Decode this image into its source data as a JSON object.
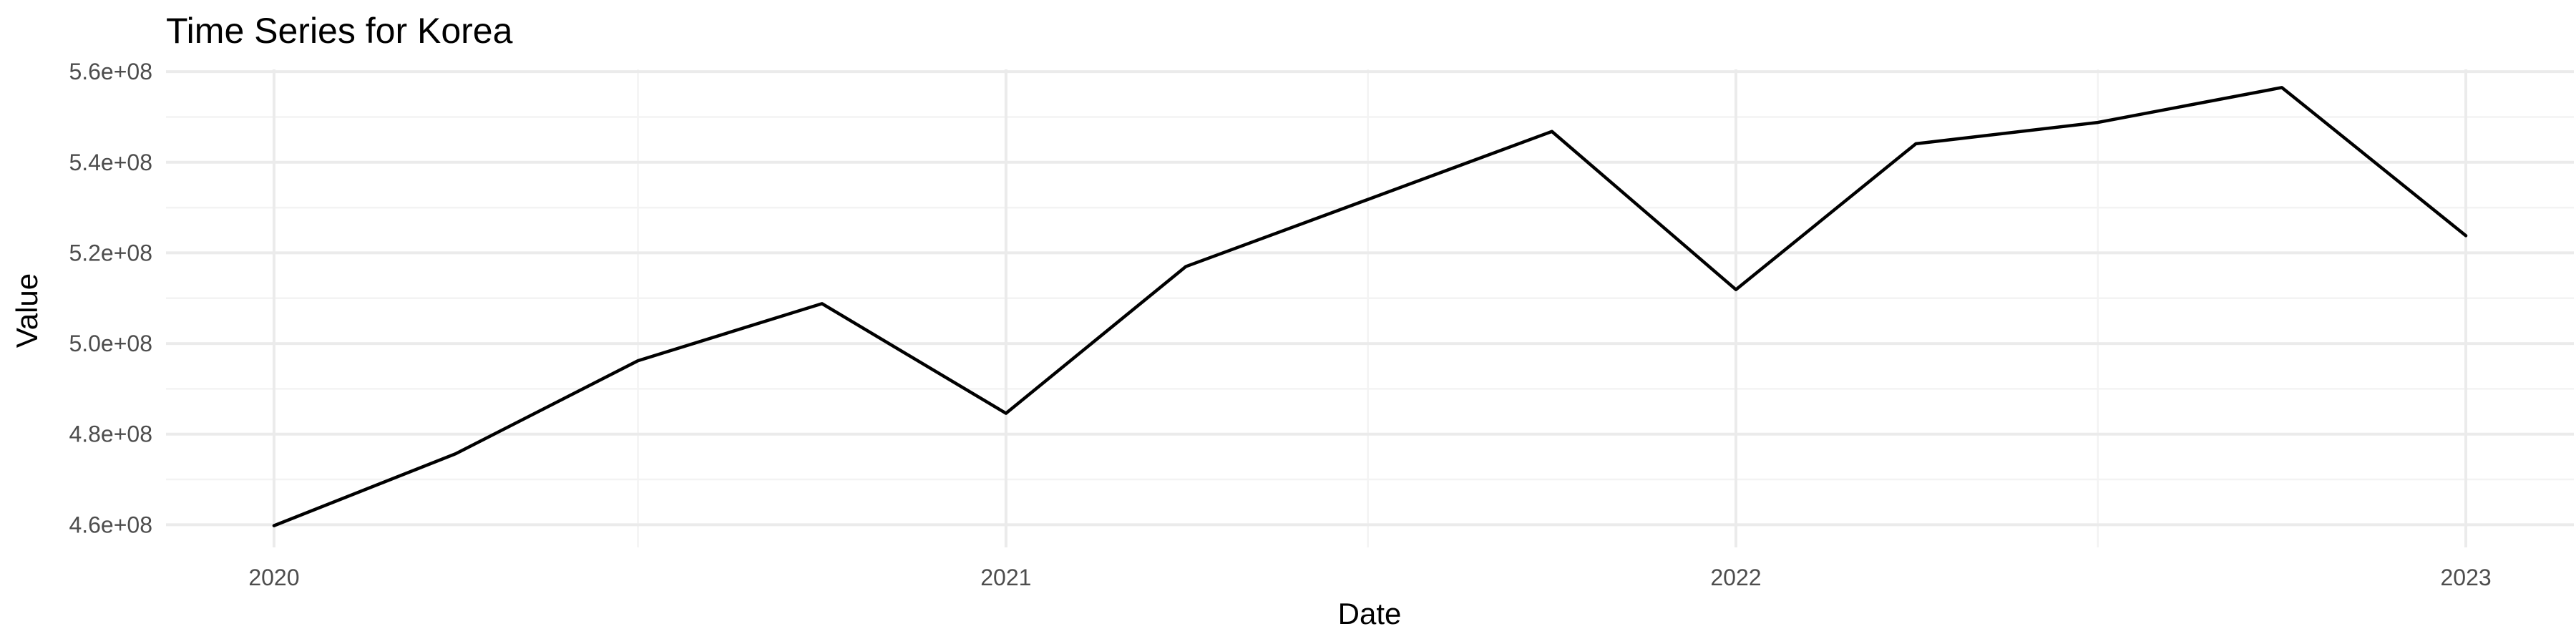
{
  "chart_data": {
    "type": "line",
    "title": "Time Series for Korea",
    "xlabel": "Date",
    "ylabel": "Value",
    "x": [
      "2020-01-01",
      "2020-04-01",
      "2020-07-01",
      "2020-10-01",
      "2021-01-01",
      "2021-04-01",
      "2021-07-01",
      "2021-10-01",
      "2022-01-01",
      "2022-04-01",
      "2022-07-01",
      "2022-10-01",
      "2023-01-01"
    ],
    "series": [
      {
        "values": [
          459800000,
          475700000,
          496200000,
          508800000,
          484600000,
          517000000,
          531800000,
          546800000,
          511900000,
          544100000,
          548800000,
          556500000,
          523800000
        ]
      }
    ],
    "xlim": [
      "2019-11-08",
      "2023-02-24"
    ],
    "ylim": [
      455000000,
      560500000
    ],
    "x_ticks": [
      "2020-01-01",
      "2021-01-01",
      "2022-01-01",
      "2023-01-01"
    ],
    "x_tick_labels": [
      "2020",
      "2021",
      "2022",
      "2023"
    ],
    "x_minor_ticks": [
      "2020-07-01",
      "2021-07-01",
      "2022-07-01"
    ],
    "y_ticks": [
      460000000,
      480000000,
      500000000,
      520000000,
      540000000,
      560000000
    ],
    "y_tick_labels": [
      "4.6e+08",
      "4.8e+08",
      "5.0e+08",
      "5.2e+08",
      "5.4e+08",
      "5.6e+08"
    ],
    "y_minor_ticks": [
      470000000,
      490000000,
      510000000,
      530000000,
      550000000
    ],
    "grid": true,
    "legend": "none",
    "colors": {
      "line": "#000000",
      "grid_major": "#ebebeb",
      "grid_minor": "#f3f3f3",
      "tick_text": "#4d4d4d"
    }
  }
}
